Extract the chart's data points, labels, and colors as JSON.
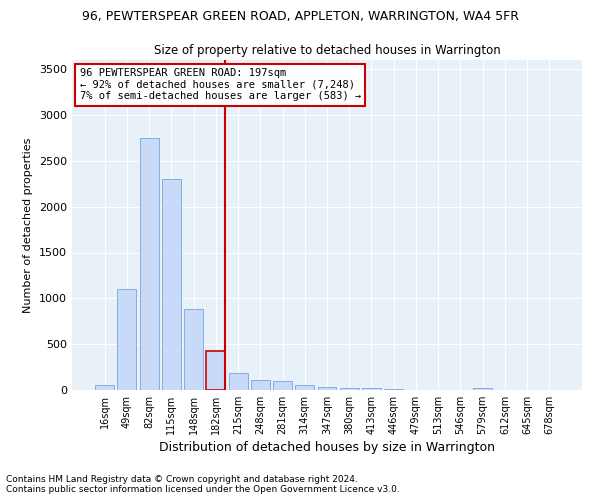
{
  "title": "96, PEWTERSPEAR GREEN ROAD, APPLETON, WARRINGTON, WA4 5FR",
  "subtitle": "Size of property relative to detached houses in Warrington",
  "xlabel": "Distribution of detached houses by size in Warrington",
  "ylabel": "Number of detached properties",
  "categories": [
    "16sqm",
    "49sqm",
    "82sqm",
    "115sqm",
    "148sqm",
    "182sqm",
    "215sqm",
    "248sqm",
    "281sqm",
    "314sqm",
    "347sqm",
    "380sqm",
    "413sqm",
    "446sqm",
    "479sqm",
    "513sqm",
    "546sqm",
    "579sqm",
    "612sqm",
    "645sqm",
    "678sqm"
  ],
  "values": [
    55,
    1100,
    2750,
    2300,
    880,
    430,
    190,
    110,
    100,
    55,
    30,
    20,
    20,
    10,
    5,
    0,
    0,
    20,
    0,
    0,
    0
  ],
  "bar_color": "#c9daf8",
  "bar_edge_color": "#6fa8dc",
  "highlight_bar_index": 5,
  "highlight_bar_color": "#c9daf8",
  "highlight_bar_edge_color": "#cc0000",
  "vline_color": "#cc0000",
  "annotation_line1": "96 PEWTERSPEAR GREEN ROAD: 197sqm",
  "annotation_line2": "← 92% of detached houses are smaller (7,248)",
  "annotation_line3": "7% of semi-detached houses are larger (583) →",
  "annotation_box_color": "#ffffff",
  "annotation_box_edge_color": "#cc0000",
  "ylim": [
    0,
    3600
  ],
  "yticks": [
    0,
    500,
    1000,
    1500,
    2000,
    2500,
    3000,
    3500
  ],
  "footer_line1": "Contains HM Land Registry data © Crown copyright and database right 2024.",
  "footer_line2": "Contains public sector information licensed under the Open Government Licence v3.0.",
  "background_color": "#e8f0f8",
  "grid_color": "#ffffff",
  "title_fontsize": 9,
  "subtitle_fontsize": 8.5,
  "ylabel_fontsize": 8,
  "xlabel_fontsize": 9,
  "bar_width": 0.85
}
